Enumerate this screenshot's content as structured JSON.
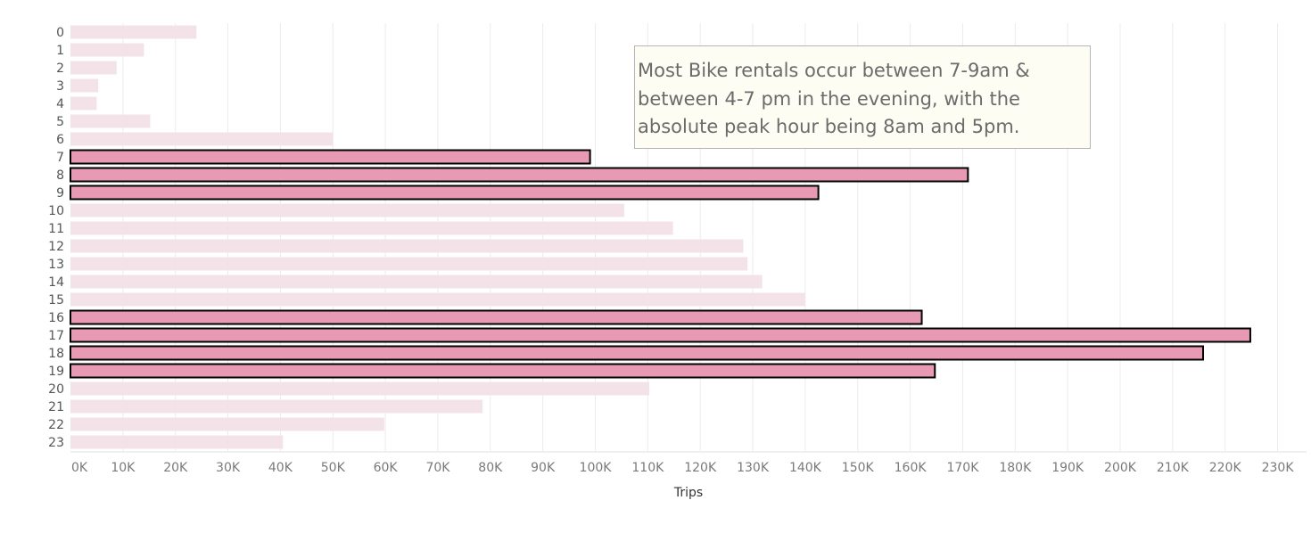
{
  "chart_data": {
    "type": "bar",
    "orientation": "horizontal",
    "categories": [
      "0",
      "1",
      "2",
      "3",
      "4",
      "5",
      "6",
      "7",
      "8",
      "9",
      "10",
      "11",
      "12",
      "13",
      "14",
      "15",
      "16",
      "17",
      "18",
      "19",
      "20",
      "21",
      "22",
      "23"
    ],
    "values": [
      24000,
      14000,
      8800,
      5300,
      5000,
      15200,
      50000,
      99000,
      171000,
      142500,
      105500,
      114800,
      128200,
      129000,
      131800,
      140000,
      162200,
      224800,
      215800,
      164700,
      110300,
      78500,
      59800,
      40500
    ],
    "highlighted": [
      "7",
      "8",
      "9",
      "16",
      "17",
      "18",
      "19"
    ],
    "xlabel": "Trips",
    "xlim": [
      0,
      235000
    ],
    "x_ticks": [
      "0K",
      "10K",
      "20K",
      "30K",
      "40K",
      "50K",
      "60K",
      "70K",
      "80K",
      "90K",
      "100K",
      "110K",
      "120K",
      "130K",
      "140K",
      "150K",
      "160K",
      "170K",
      "180K",
      "190K",
      "200K",
      "210K",
      "220K",
      "230K"
    ],
    "grid": true,
    "colors": {
      "highlight": "#e89ab4",
      "dimmed": "#f3e3e8",
      "outline": "#000000",
      "grid": "#ececec"
    },
    "annotation": "Most Bike rentals occur between 7-9am & between 4-7 pm in the evening, with the absolute peak hour being 8am and 5pm."
  }
}
